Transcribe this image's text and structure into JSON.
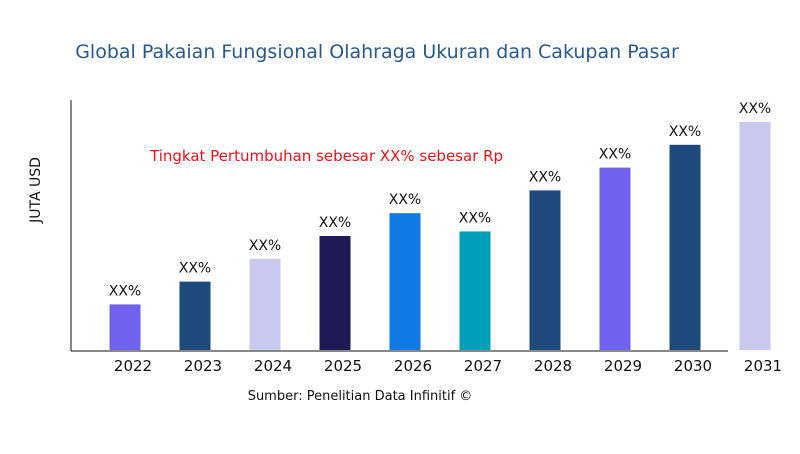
{
  "chart_data": {
    "type": "bar",
    "title": "Global Pakaian Fungsional Olahraga Ukuran dan Cakupan Pasar",
    "ylabel": "JUTA USD",
    "xlabel": "",
    "annotation": "Tingkat Pertumbuhan sebesar XX% sebesar Rp",
    "source": "Sumber: Penelitian Data Infinitif ©",
    "categories": [
      "2022",
      "2023",
      "2024",
      "2025",
      "2026",
      "2027",
      "2028",
      "2029",
      "2030",
      "2031"
    ],
    "values": [
      20,
      30,
      40,
      50,
      60,
      52,
      70,
      80,
      90,
      100
    ],
    "data_labels": [
      "XX%",
      "XX%",
      "XX%",
      "XX%",
      "XX%",
      "XX%",
      "XX%",
      "XX%",
      "XX%",
      "XX%"
    ],
    "colors": [
      "#7163f2",
      "#1e4a7b",
      "#c9c9f0",
      "#1f1956",
      "#0f7ae5",
      "#00a0ba",
      "#1e4a7b",
      "#7163f2",
      "#1e4a7b",
      "#c9c9f0"
    ],
    "ylim": [
      0,
      100
    ],
    "grid": false,
    "legend": "none",
    "title_color": "#2a5a8a",
    "annotation_color": "#e8141c"
  }
}
